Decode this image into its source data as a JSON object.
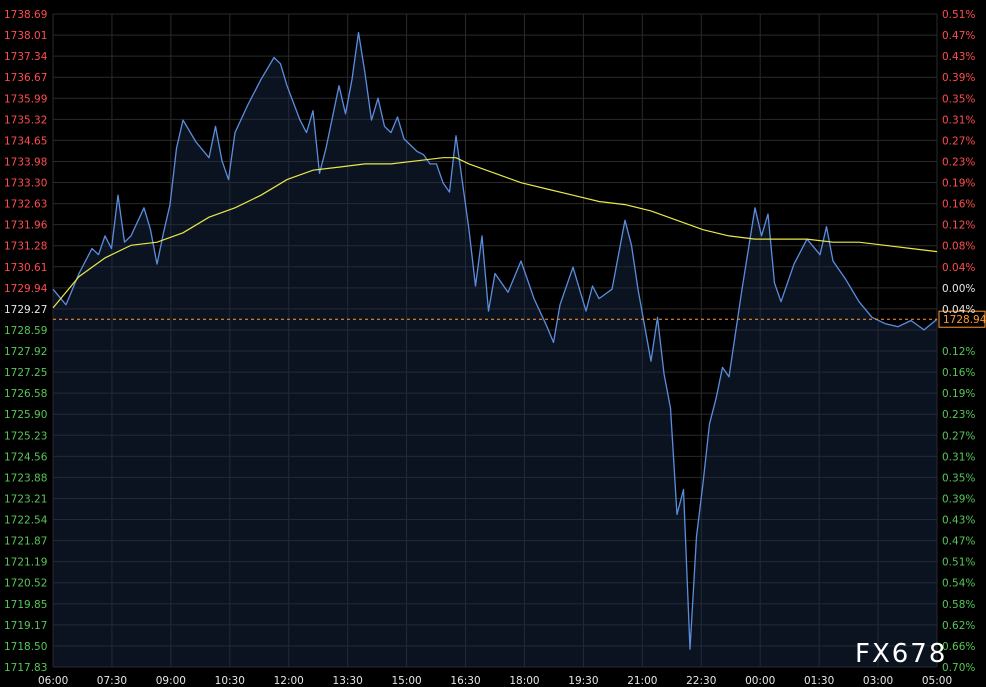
{
  "chart_data": {
    "type": "line",
    "title": "",
    "xlabel": "",
    "ylabel": "",
    "ylim": [
      1717.83,
      1738.69
    ],
    "reference_price": 1729.61,
    "last_price": 1728.94,
    "last_price_label": "1728.94",
    "grid": true,
    "colors": {
      "background": "#000000",
      "grid": "#2a2a2a",
      "price_line": "#5b8dde",
      "moving_average": "#e8e84a",
      "up_text": "#ff4d4d",
      "down_text": "#55c755",
      "neutral_text": "#e6e6e6",
      "x_text": "#e6e6e6",
      "last_price": "#ff9933"
    },
    "x_ticks": [
      "06:00",
      "07:30",
      "09:00",
      "10:30",
      "12:00",
      "13:30",
      "15:00",
      "16:30",
      "18:00",
      "19:30",
      "21:00",
      "22:30",
      "00:00",
      "01:30",
      "03:00",
      "05:00"
    ],
    "y_ticks_left": [
      "1738.69",
      "1738.01",
      "1737.34",
      "1736.67",
      "1735.99",
      "1735.32",
      "1734.65",
      "1733.98",
      "1733.30",
      "1732.63",
      "1731.96",
      "1731.28",
      "1730.61",
      "1729.94",
      "1729.27",
      "1728.59",
      "1727.92",
      "1727.25",
      "1726.58",
      "1725.90",
      "1725.23",
      "1724.56",
      "1723.88",
      "1723.21",
      "1722.54",
      "1721.87",
      "1721.19",
      "1720.52",
      "1719.85",
      "1719.17",
      "1718.50",
      "1717.83"
    ],
    "y_ticks_right": [
      "0.51%",
      "0.47%",
      "0.43%",
      "0.39%",
      "0.35%",
      "0.31%",
      "0.27%",
      "0.23%",
      "0.19%",
      "0.16%",
      "0.12%",
      "0.08%",
      "0.04%",
      "0.00%",
      "0.04%",
      "",
      "0.12%",
      "0.16%",
      "0.19%",
      "0.23%",
      "0.27%",
      "0.31%",
      "0.35%",
      "0.39%",
      "0.43%",
      "0.47%",
      "0.51%",
      "0.54%",
      "0.58%",
      "0.62%",
      "0.66%",
      "0.70%"
    ],
    "series": [
      {
        "values": [
          [
            0.0,
            1729.9
          ],
          [
            0.5,
            1729.4
          ],
          [
            1.0,
            1730.4
          ],
          [
            1.5,
            1731.2
          ],
          [
            1.75,
            1731.0
          ],
          [
            2.0,
            1731.6
          ],
          [
            2.25,
            1731.2
          ],
          [
            2.5,
            1732.9
          ],
          [
            2.75,
            1731.4
          ],
          [
            3.0,
            1731.6
          ],
          [
            3.5,
            1732.5
          ],
          [
            3.75,
            1731.8
          ],
          [
            4.0,
            1730.7
          ],
          [
            4.25,
            1731.7
          ],
          [
            4.5,
            1732.6
          ],
          [
            4.75,
            1734.4
          ],
          [
            5.0,
            1735.3
          ],
          [
            5.5,
            1734.6
          ],
          [
            6.0,
            1734.1
          ],
          [
            6.25,
            1735.1
          ],
          [
            6.5,
            1734.0
          ],
          [
            6.75,
            1733.4
          ],
          [
            7.0,
            1734.9
          ],
          [
            7.5,
            1735.8
          ],
          [
            8.0,
            1736.6
          ],
          [
            8.5,
            1737.3
          ],
          [
            8.75,
            1737.1
          ],
          [
            9.0,
            1736.4
          ],
          [
            9.5,
            1735.3
          ],
          [
            9.75,
            1734.9
          ],
          [
            10.0,
            1735.6
          ],
          [
            10.25,
            1733.6
          ],
          [
            10.5,
            1734.4
          ],
          [
            11.0,
            1736.4
          ],
          [
            11.25,
            1735.5
          ],
          [
            11.5,
            1736.6
          ],
          [
            11.75,
            1738.1
          ],
          [
            12.0,
            1736.8
          ],
          [
            12.25,
            1735.3
          ],
          [
            12.5,
            1736.0
          ],
          [
            12.75,
            1735.1
          ],
          [
            13.0,
            1734.9
          ],
          [
            13.25,
            1735.4
          ],
          [
            13.5,
            1734.7
          ],
          [
            14.0,
            1734.3
          ],
          [
            14.25,
            1734.2
          ],
          [
            14.5,
            1733.9
          ],
          [
            14.75,
            1733.9
          ],
          [
            15.0,
            1733.3
          ],
          [
            15.25,
            1733.0
          ],
          [
            15.5,
            1734.8
          ],
          [
            16.0,
            1731.8
          ],
          [
            16.25,
            1730.0
          ],
          [
            16.5,
            1731.6
          ],
          [
            16.75,
            1729.2
          ],
          [
            17.0,
            1730.4
          ],
          [
            17.5,
            1729.8
          ],
          [
            18.0,
            1730.8
          ],
          [
            18.5,
            1729.6
          ],
          [
            19.0,
            1728.7
          ],
          [
            19.25,
            1728.2
          ],
          [
            19.5,
            1729.4
          ],
          [
            20.0,
            1730.6
          ],
          [
            20.5,
            1729.2
          ],
          [
            20.75,
            1730.0
          ],
          [
            21.0,
            1729.6
          ],
          [
            21.5,
            1729.9
          ],
          [
            22.0,
            1732.1
          ],
          [
            22.25,
            1731.3
          ],
          [
            22.5,
            1729.9
          ],
          [
            23.0,
            1727.6
          ],
          [
            23.25,
            1729.0
          ],
          [
            23.5,
            1727.2
          ],
          [
            23.75,
            1726.1
          ],
          [
            24.0,
            1722.7
          ],
          [
            24.25,
            1723.5
          ],
          [
            24.5,
            1718.4
          ],
          [
            24.75,
            1722.0
          ],
          [
            25.0,
            1723.7
          ],
          [
            25.25,
            1725.6
          ],
          [
            25.5,
            1726.4
          ],
          [
            25.75,
            1727.4
          ],
          [
            26.0,
            1727.1
          ],
          [
            26.5,
            1729.9
          ],
          [
            26.75,
            1731.2
          ],
          [
            27.0,
            1732.5
          ],
          [
            27.25,
            1731.6
          ],
          [
            27.5,
            1732.3
          ],
          [
            27.75,
            1730.1
          ],
          [
            28.0,
            1729.5
          ],
          [
            28.5,
            1730.7
          ],
          [
            29.0,
            1731.5
          ],
          [
            29.5,
            1731.0
          ],
          [
            29.75,
            1731.9
          ],
          [
            30.0,
            1730.8
          ],
          [
            30.5,
            1730.2
          ],
          [
            31.0,
            1729.5
          ],
          [
            31.5,
            1729.0
          ],
          [
            32.0,
            1728.8
          ],
          [
            32.5,
            1728.7
          ],
          [
            33.0,
            1728.9
          ],
          [
            33.5,
            1728.6
          ],
          [
            34.0,
            1728.94
          ]
        ]
      },
      {
        "values": [
          [
            0.0,
            1729.3
          ],
          [
            1.0,
            1730.3
          ],
          [
            2.0,
            1730.9
          ],
          [
            3.0,
            1731.3
          ],
          [
            4.0,
            1731.4
          ],
          [
            5.0,
            1731.7
          ],
          [
            6.0,
            1732.2
          ],
          [
            7.0,
            1732.5
          ],
          [
            8.0,
            1732.9
          ],
          [
            9.0,
            1733.4
          ],
          [
            10.0,
            1733.7
          ],
          [
            11.0,
            1733.8
          ],
          [
            12.0,
            1733.9
          ],
          [
            13.0,
            1733.9
          ],
          [
            14.0,
            1734.0
          ],
          [
            15.0,
            1734.1
          ],
          [
            15.5,
            1734.1
          ],
          [
            16.0,
            1733.9
          ],
          [
            17.0,
            1733.6
          ],
          [
            18.0,
            1733.3
          ],
          [
            19.0,
            1733.1
          ],
          [
            20.0,
            1732.9
          ],
          [
            21.0,
            1732.7
          ],
          [
            22.0,
            1732.6
          ],
          [
            23.0,
            1732.4
          ],
          [
            24.0,
            1732.1
          ],
          [
            25.0,
            1731.8
          ],
          [
            26.0,
            1731.6
          ],
          [
            27.0,
            1731.5
          ],
          [
            28.0,
            1731.5
          ],
          [
            29.0,
            1731.5
          ],
          [
            30.0,
            1731.4
          ],
          [
            31.0,
            1731.4
          ],
          [
            32.0,
            1731.3
          ],
          [
            33.0,
            1731.2
          ],
          [
            34.0,
            1731.1
          ]
        ]
      }
    ]
  },
  "watermark": "FX678"
}
